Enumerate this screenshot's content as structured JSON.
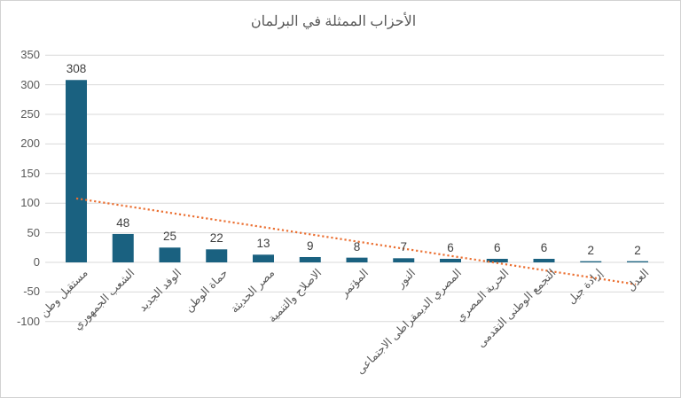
{
  "chart_data": {
    "type": "bar",
    "title": "الأحزاب الممثلة في البرلمان",
    "categories": [
      "مستقبل وطن",
      "الشعب الجمهوري",
      "الوفد الجديد",
      "حماة الوطن",
      "مصر الحديثة",
      "الاصلاح والتنمية",
      "المؤتمر",
      "النور",
      "المصري الديمقراطى الاجتماعى",
      "الحرية المصري",
      "التجمع الوطنى التقدمى",
      "إرادة جيل",
      "العدل"
    ],
    "values": [
      308,
      48,
      25,
      22,
      13,
      9,
      8,
      7,
      6,
      6,
      6,
      2,
      2
    ],
    "data_labels": true,
    "xlabel": "",
    "ylabel": "",
    "ylim": [
      -100,
      350
    ],
    "yticks": [
      350,
      300,
      250,
      200,
      150,
      100,
      50,
      0,
      -50,
      -100
    ],
    "grid": true,
    "legend": "none",
    "rtl": true,
    "trendline": {
      "type": "linear",
      "style": "dotted",
      "start_value": 108,
      "end_value": -37
    }
  },
  "colors": {
    "bar": "#1A6180",
    "trendline": "#EB7032",
    "gridline": "#D9D9D9",
    "axis_text": "#595959",
    "data_label_text": "#404040",
    "title_text": "#595959",
    "border": "#D2D2D2",
    "background": "#FFFFFF"
  }
}
